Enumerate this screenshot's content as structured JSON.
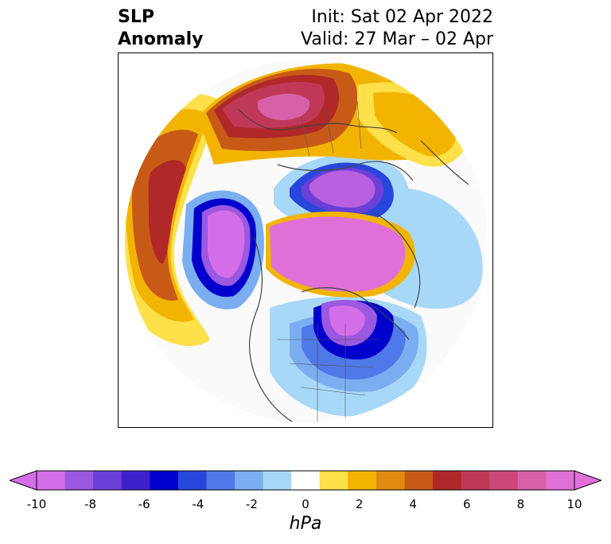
{
  "title": {
    "left_line1": "SLP",
    "left_line2": "Anomaly",
    "right_line1": "Init: Sat 02 Apr 2022",
    "right_line2": "Valid: 27 Mar – 02 Apr"
  },
  "colorbar": {
    "unit": "hPa",
    "ticks": [
      "-10",
      "-8",
      "-6",
      "-4",
      "-2",
      "0",
      "2",
      "4",
      "6",
      "8",
      "10"
    ],
    "colors": [
      "#d46ee8",
      "#9b58e0",
      "#6b3fd8",
      "#3d22cc",
      "#0000cc",
      "#2846dc",
      "#4f78e8",
      "#7aaef0",
      "#a8d8f8",
      "#ffffff",
      "#fde04a",
      "#f2b400",
      "#e08a10",
      "#c85a18",
      "#b02828",
      "#c03858",
      "#cc4878",
      "#d860a8",
      "#e070d8"
    ],
    "min_color": "#d46ee8",
    "max_color": "#e070d8"
  },
  "map": {
    "projection": "north-polar-stereographic",
    "field": "SLP anomaly"
  }
}
